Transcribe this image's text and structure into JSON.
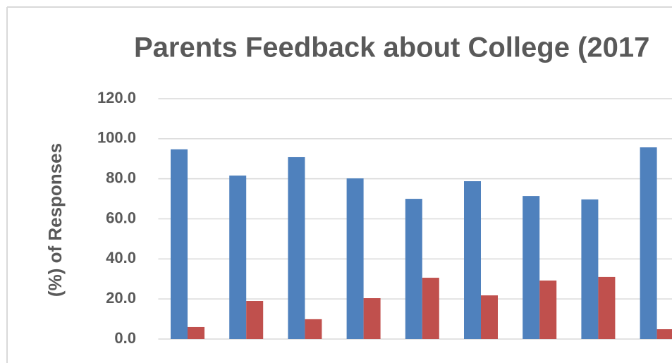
{
  "chart_data": {
    "type": "bar",
    "title": "Parents Feedback about College (2017",
    "y_label": "(%) of Responses",
    "categories": [
      null,
      null,
      null,
      null,
      null,
      null,
      null,
      null,
      null
    ],
    "series": [
      {
        "color": "#4f81bd",
        "values": [
          94.7,
          81.6,
          90.8,
          80.2,
          70.0,
          78.8,
          71.4,
          69.7,
          95.7
        ]
      },
      {
        "color": "#c0504d",
        "values": [
          6.0,
          19.0,
          9.9,
          20.4,
          30.6,
          21.8,
          29.2,
          31.0,
          4.9
        ]
      }
    ],
    "ylim": [
      0,
      120
    ],
    "yticks": [
      {
        "value": 0,
        "label": "0.0"
      },
      {
        "value": 20,
        "label": "20.0"
      },
      {
        "value": 40,
        "label": "40.0"
      },
      {
        "value": 60,
        "label": "60.0"
      },
      {
        "value": 80,
        "label": "80.0"
      },
      {
        "value": 100,
        "label": "100.0"
      },
      {
        "value": 120,
        "label": "120.0"
      }
    ],
    "grid": true
  }
}
